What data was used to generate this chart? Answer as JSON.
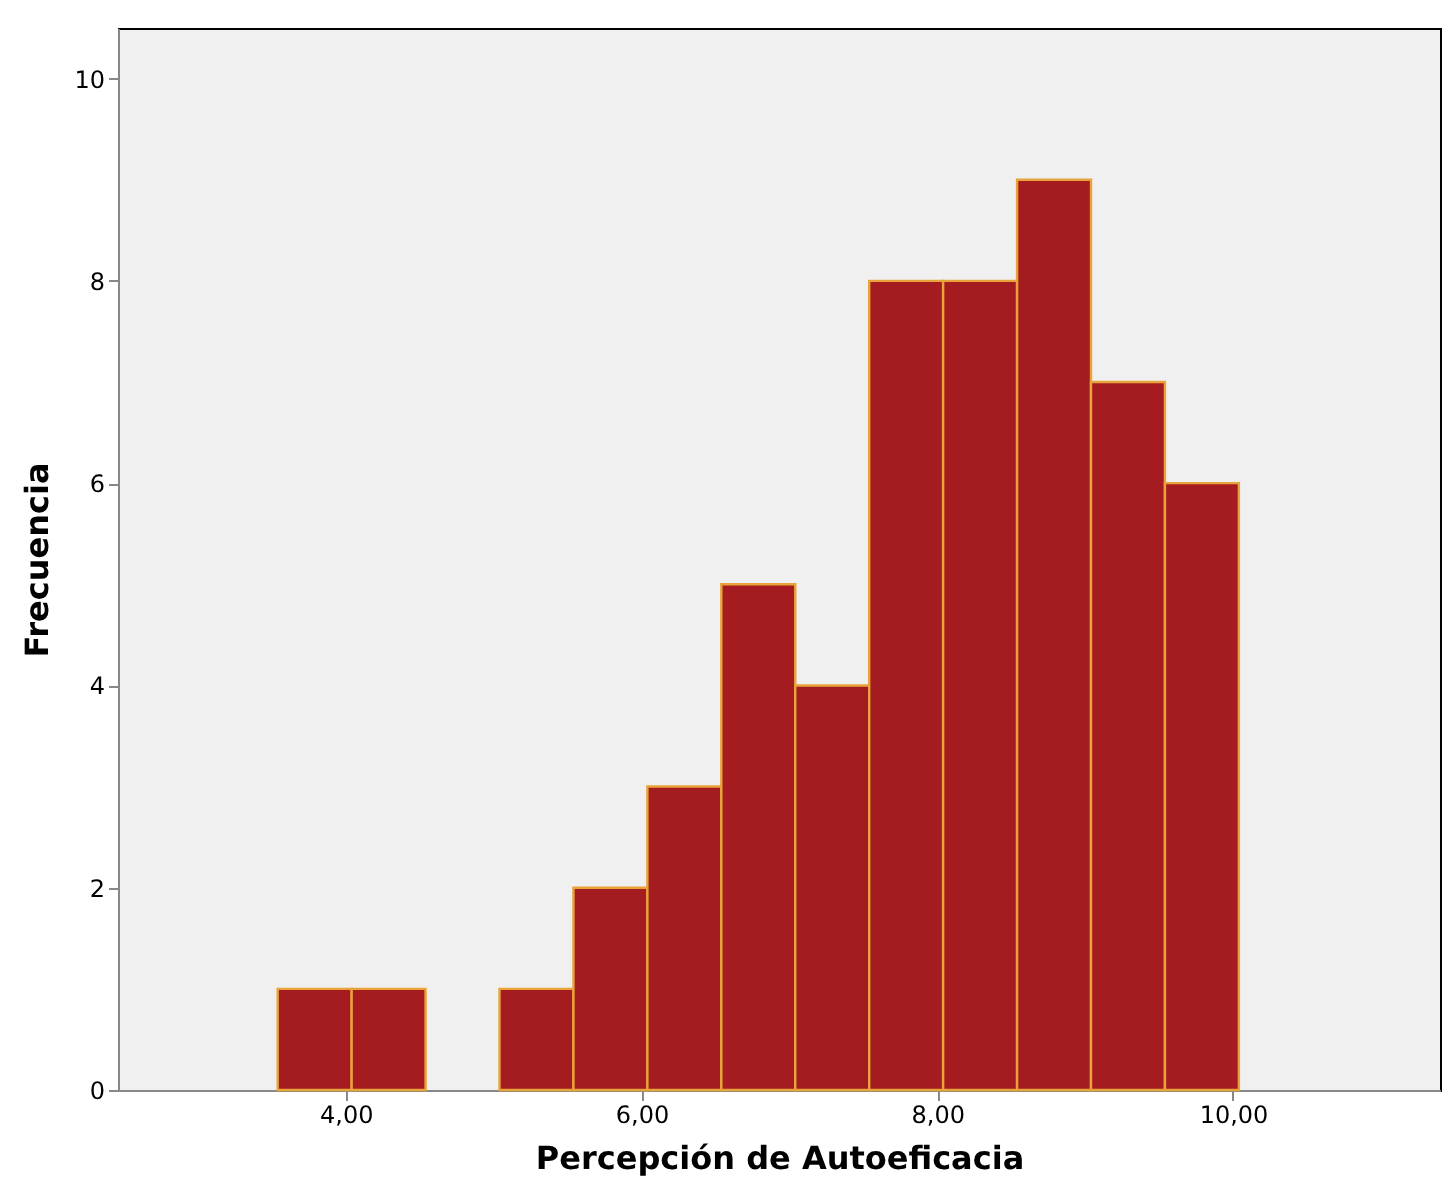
{
  "chart_data": {
    "type": "histogram",
    "xlabel": "Percepción de Autoeficacia",
    "ylabel": "Frecuencia",
    "bins": [
      3.54,
      4.04,
      4.54,
      5.04,
      5.54,
      6.04,
      6.54,
      7.04,
      7.54,
      8.04,
      8.54,
      9.04,
      9.54,
      10.04
    ],
    "values": [
      1,
      1,
      0,
      1,
      2,
      3,
      5,
      4,
      8,
      8,
      9,
      7,
      6
    ],
    "color": "#a51c20",
    "xlim": [
      2.46,
      11.4
    ],
    "xticks": [
      {
        "value": 4,
        "label": "4,00"
      },
      {
        "value": 6,
        "label": "6,00"
      },
      {
        "value": 8,
        "label": "8,00"
      },
      {
        "value": 10,
        "label": "10,00"
      }
    ],
    "ylim": [
      0,
      10.5
    ],
    "yticks": [
      0,
      2,
      4,
      6,
      8,
      10
    ],
    "grid": false
  }
}
